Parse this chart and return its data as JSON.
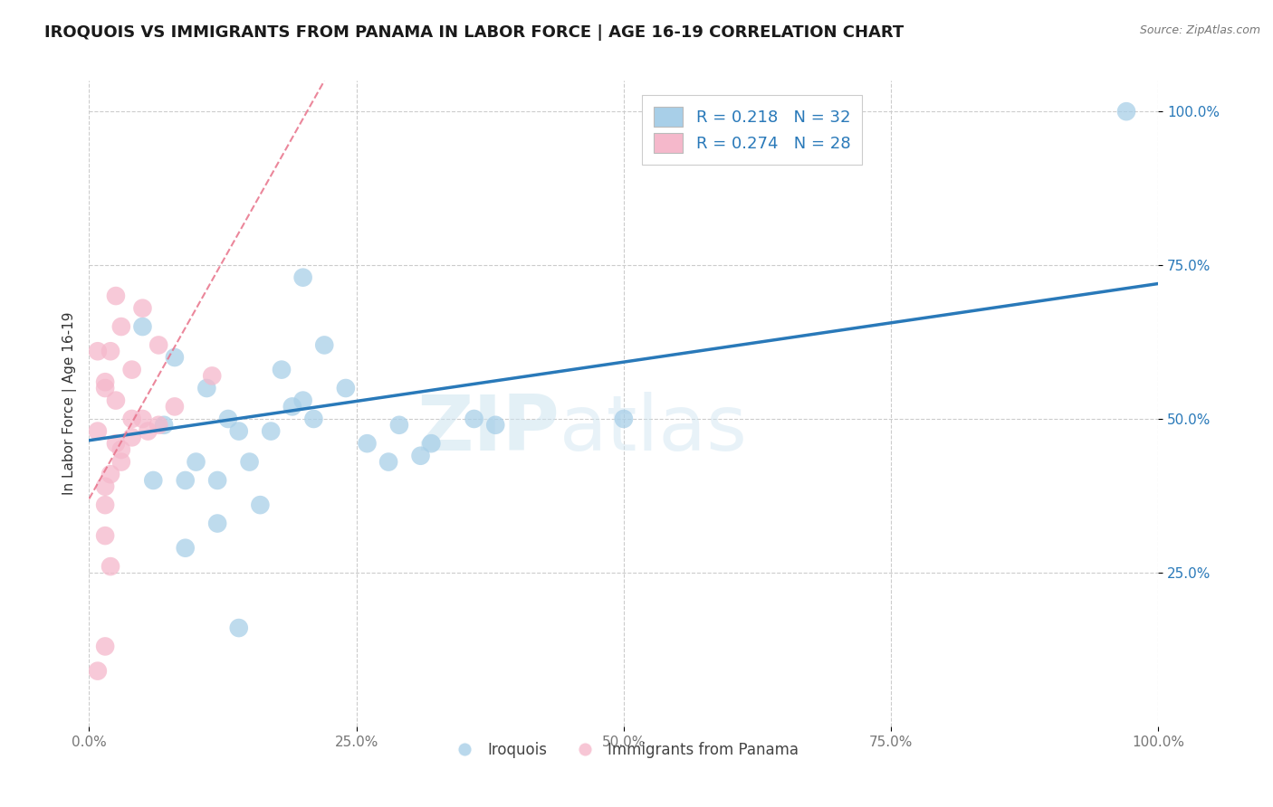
{
  "title": "IROQUOIS VS IMMIGRANTS FROM PANAMA IN LABOR FORCE | AGE 16-19 CORRELATION CHART",
  "source_text": "Source: ZipAtlas.com",
  "ylabel": "In Labor Force | Age 16-19",
  "xlim": [
    0.0,
    1.0
  ],
  "ylim": [
    0.0,
    1.05
  ],
  "xtick_labels": [
    "0.0%",
    "25.0%",
    "50.0%",
    "75.0%",
    "100.0%"
  ],
  "xtick_values": [
    0.0,
    0.25,
    0.5,
    0.75,
    1.0
  ],
  "ytick_labels": [
    "25.0%",
    "50.0%",
    "75.0%",
    "100.0%"
  ],
  "ytick_values": [
    0.25,
    0.5,
    0.75,
    1.0
  ],
  "legend_r": [
    "R = 0.218",
    "R = 0.274"
  ],
  "legend_n": [
    "N = 32",
    "N = 28"
  ],
  "legend_labels": [
    "Iroquois",
    "Immigrants from Panama"
  ],
  "blue_color": "#a8cfe8",
  "pink_color": "#f5b8cb",
  "blue_line_color": "#2979b9",
  "pink_line_color": "#e8728a",
  "watermark_zip": "ZIP",
  "watermark_atlas": "atlas",
  "title_fontsize": 13,
  "axis_label_fontsize": 11,
  "tick_fontsize": 11,
  "blue_scatter_x": [
    0.13,
    0.2,
    0.05,
    0.08,
    0.11,
    0.07,
    0.1,
    0.09,
    0.14,
    0.18,
    0.22,
    0.2,
    0.26,
    0.29,
    0.28,
    0.32,
    0.36,
    0.38,
    0.16,
    0.12,
    0.09,
    0.06,
    0.24,
    0.21,
    0.17,
    0.19,
    0.31,
    0.14,
    0.12,
    0.15,
    0.5,
    0.97
  ],
  "blue_scatter_y": [
    0.5,
    0.73,
    0.65,
    0.6,
    0.55,
    0.49,
    0.43,
    0.4,
    0.48,
    0.58,
    0.62,
    0.53,
    0.46,
    0.49,
    0.43,
    0.46,
    0.5,
    0.49,
    0.36,
    0.33,
    0.29,
    0.4,
    0.55,
    0.5,
    0.48,
    0.52,
    0.44,
    0.16,
    0.4,
    0.43,
    0.5,
    1.0
  ],
  "pink_scatter_x": [
    0.015,
    0.025,
    0.008,
    0.03,
    0.015,
    0.025,
    0.04,
    0.015,
    0.008,
    0.02,
    0.03,
    0.05,
    0.065,
    0.08,
    0.04,
    0.055,
    0.015,
    0.02,
    0.008,
    0.015,
    0.03,
    0.025,
    0.05,
    0.065,
    0.04,
    0.015,
    0.02,
    0.115
  ],
  "pink_scatter_y": [
    0.36,
    0.53,
    0.48,
    0.43,
    0.39,
    0.46,
    0.5,
    0.55,
    0.61,
    0.41,
    0.45,
    0.5,
    0.49,
    0.52,
    0.47,
    0.48,
    0.31,
    0.26,
    0.09,
    0.13,
    0.65,
    0.7,
    0.68,
    0.62,
    0.58,
    0.56,
    0.61,
    0.57
  ],
  "blue_trend_x": [
    0.0,
    1.0
  ],
  "blue_trend_y": [
    0.465,
    0.72
  ],
  "pink_trend_x": [
    0.0,
    0.22
  ],
  "pink_trend_y": [
    0.37,
    1.05
  ]
}
